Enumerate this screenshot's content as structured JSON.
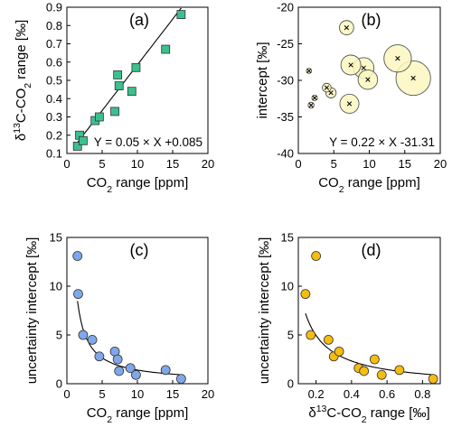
{
  "chart_data": [
    {
      "panel": "(a)",
      "type": "scatter",
      "xlabel": "CO₂ range [ppm]",
      "ylabel": "δ¹³C-CO₂ range [‰]",
      "xlim": [
        0,
        20
      ],
      "ylim": [
        0.1,
        0.9
      ],
      "xticks": [
        "0",
        "5",
        "10",
        "15",
        "20"
      ],
      "yticks": [
        "0.1",
        "0.2",
        "0.3",
        "0.4",
        "0.5",
        "0.6",
        "0.7",
        "0.8",
        "0.9"
      ],
      "marker": "square",
      "color": "#3cc08e",
      "x": [
        1.5,
        1.8,
        2.3,
        4.0,
        4.6,
        6.8,
        7.2,
        7.4,
        9.2,
        9.8,
        14.0,
        16.2
      ],
      "y": [
        0.14,
        0.2,
        0.17,
        0.28,
        0.3,
        0.33,
        0.53,
        0.47,
        0.44,
        0.57,
        0.67,
        0.86
      ],
      "fit": {
        "type": "linear",
        "slope": 0.05,
        "intercept": 0.085,
        "x_range": [
          1.5,
          16.2
        ]
      },
      "annotation": "Y = 0.05 × X +0.085"
    },
    {
      "panel": "(b)",
      "type": "bubble",
      "xlabel": "CO₂ range [ppm]",
      "ylabel": "intercept [‰]",
      "xlim": [
        0,
        20
      ],
      "ylim": [
        -40,
        -20
      ],
      "xticks": [
        "0",
        "5",
        "10",
        "15",
        "20"
      ],
      "yticks": [
        "-20",
        "-25",
        "-30",
        "-35",
        "-40"
      ],
      "color": "#fbf7c0",
      "x": [
        1.5,
        1.8,
        2.3,
        4.0,
        4.6,
        6.8,
        7.2,
        7.4,
        9.2,
        9.8,
        14.0,
        16.2
      ],
      "y": [
        -28.7,
        -33.4,
        -32.4,
        -31.0,
        -31.7,
        -22.8,
        -33.2,
        -27.9,
        -28.3,
        -29.9,
        -27.0,
        -29.7
      ],
      "size": [
        1.3,
        1.5,
        1.4,
        2.2,
        2.6,
        3.6,
        4.8,
        5.0,
        5.2,
        4.9,
        6.9,
        8.7
      ],
      "annotation": "Y = 0.22 × X -31.31"
    },
    {
      "panel": "(c)",
      "type": "scatter",
      "xlabel": "CO₂ range [ppm]",
      "ylabel": "uncertainty intercept [‰]",
      "xlim": [
        0,
        20
      ],
      "ylim": [
        0,
        15
      ],
      "xticks": [
        "0",
        "5",
        "10",
        "15",
        "20"
      ],
      "yticks": [
        "0",
        "5",
        "10",
        "15"
      ],
      "marker": "circle",
      "color": "#7fa8ea",
      "x": [
        1.5,
        1.6,
        2.3,
        3.6,
        4.6,
        6.8,
        7.2,
        7.4,
        9.0,
        9.8,
        14.0,
        16.2
      ],
      "y": [
        13.1,
        9.2,
        5.0,
        4.5,
        2.8,
        3.3,
        2.5,
        1.3,
        1.6,
        0.9,
        1.4,
        0.5
      ],
      "fit": {
        "type": "inverse",
        "a": 12.5,
        "b": 0.15,
        "x_range": [
          1.5,
          16.2
        ]
      }
    },
    {
      "panel": "(d)",
      "type": "scatter",
      "xlabel": "δ¹³C-CO₂ range [‰]",
      "ylabel": "uncertainty intercept [‰]",
      "xlim": [
        0.1,
        0.9
      ],
      "ylim": [
        0,
        15
      ],
      "xticks": [
        "0.2",
        "0.4",
        "0.6",
        "0.8"
      ],
      "yticks": [
        "0",
        "5",
        "10",
        "15"
      ],
      "marker": "circle",
      "color": "#f5bc11",
      "x": [
        0.14,
        0.17,
        0.2,
        0.27,
        0.3,
        0.33,
        0.44,
        0.47,
        0.53,
        0.57,
        0.67,
        0.86
      ],
      "y": [
        9.2,
        5.0,
        13.1,
        4.5,
        2.8,
        3.3,
        1.6,
        1.3,
        2.5,
        0.9,
        1.4,
        0.5
      ],
      "fit": {
        "type": "inverse",
        "a": 1.05,
        "b": -0.3,
        "x_range": [
          0.14,
          0.86
        ]
      }
    }
  ]
}
